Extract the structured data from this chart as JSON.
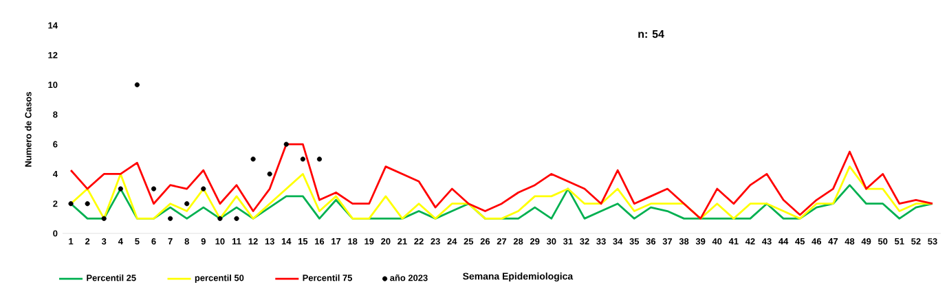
{
  "chart_data": {
    "type": "line",
    "xlabel": "Semana Epidemiologica",
    "ylabel": "Numero de Casos",
    "annotations": [
      "n: 54"
    ],
    "categories": [
      "1",
      "2",
      "3",
      "4",
      "5",
      "6",
      "7",
      "8",
      "9",
      "10",
      "11",
      "12",
      "13",
      "14",
      "15",
      "16",
      "17",
      "18",
      "19",
      "20",
      "21",
      "22",
      "23",
      "24",
      "25",
      "26",
      "27",
      "28",
      "29",
      "30",
      "31",
      "32",
      "33",
      "34",
      "35",
      "36",
      "37",
      "38",
      "39",
      "40",
      "41",
      "42",
      "43",
      "44",
      "45",
      "46",
      "47",
      "48",
      "49",
      "50",
      "51",
      "52",
      "53"
    ],
    "ylim": [
      0,
      14
    ],
    "yticks": [
      0,
      2,
      4,
      6,
      8,
      10,
      12,
      14
    ],
    "legend": "bottom",
    "series": [
      {
        "name": "Percentil 25",
        "color": "#00b050",
        "values": [
          2,
          1,
          1,
          3,
          1,
          1,
          1.75,
          1,
          1.75,
          1,
          1.75,
          1,
          1.75,
          2.5,
          2.5,
          1,
          2.25,
          1,
          1,
          1,
          1,
          1.5,
          1,
          1.5,
          2,
          1,
          1,
          1,
          1.75,
          1,
          3,
          1,
          1.5,
          2,
          1,
          1.75,
          1.5,
          1,
          1,
          1,
          1,
          1,
          2,
          1,
          1,
          1.75,
          2,
          3.25,
          2,
          2,
          1,
          1.75,
          2
        ]
      },
      {
        "name": "percentil 50",
        "color": "#ffff00",
        "values": [
          2,
          3,
          1,
          4,
          1,
          1,
          2,
          1.5,
          3,
          1,
          2.5,
          1,
          2,
          3,
          4,
          1.5,
          2.5,
          1,
          1,
          2.5,
          1,
          2,
          1,
          2,
          2,
          1,
          1,
          1.5,
          2.5,
          2.5,
          3,
          2,
          2,
          3,
          1.5,
          2,
          2,
          2,
          1,
          2,
          1,
          2,
          2,
          1.5,
          1,
          2,
          2,
          4.5,
          3,
          3,
          1.5,
          2,
          2
        ]
      },
      {
        "name": "Percentil 75",
        "color": "#ff0000",
        "values": [
          4.25,
          3,
          4,
          4,
          4.75,
          2,
          3.25,
          3,
          4.25,
          2,
          3.25,
          1.5,
          3,
          6,
          6,
          2.25,
          2.75,
          2,
          2,
          4.5,
          4,
          3.5,
          1.75,
          3,
          2,
          1.5,
          2,
          2.75,
          3.25,
          4,
          3.5,
          3,
          2,
          4.25,
          2,
          2.5,
          3,
          2,
          1,
          3,
          2,
          3.25,
          4,
          2.25,
          1.25,
          2.25,
          3,
          5.5,
          3,
          4,
          2,
          2.25,
          2
        ]
      },
      {
        "name": "año 2023",
        "type": "scatter",
        "color": "#000000",
        "values": [
          2,
          2,
          1,
          3,
          10,
          3,
          1,
          2,
          3,
          1,
          1,
          5,
          4,
          6,
          5,
          5,
          null,
          null,
          null,
          null,
          null,
          null,
          null,
          null,
          null,
          null,
          null,
          null,
          null,
          null,
          null,
          null,
          null,
          null,
          null,
          null,
          null,
          null,
          null,
          null,
          null,
          null,
          null,
          null,
          null,
          null,
          null,
          null,
          null,
          null,
          null,
          null,
          null
        ]
      }
    ]
  }
}
